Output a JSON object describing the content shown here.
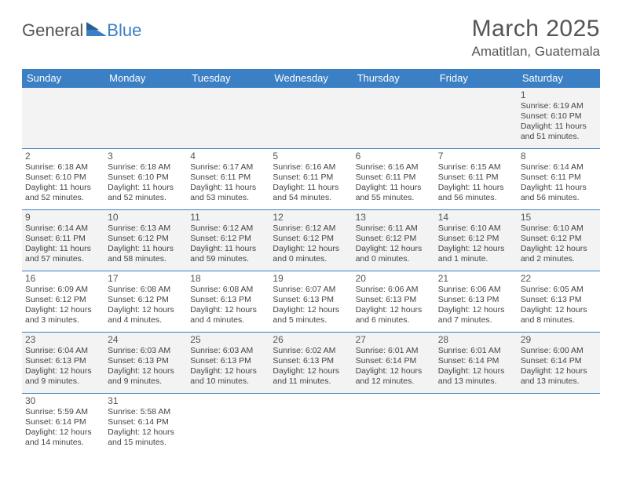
{
  "logo": {
    "text1": "General",
    "text2": "Blue"
  },
  "title": "March 2025",
  "location": "Amatitlan, Guatemala",
  "colors": {
    "header_bg": "#3b7fc4",
    "header_text": "#ffffff",
    "row_alt_bg": "#f3f3f3",
    "border": "#3b7fc4",
    "text": "#444444",
    "title_text": "#555555"
  },
  "weekdays": [
    "Sunday",
    "Monday",
    "Tuesday",
    "Wednesday",
    "Thursday",
    "Friday",
    "Saturday"
  ],
  "weeks": [
    [
      null,
      null,
      null,
      null,
      null,
      null,
      {
        "day": "1",
        "sunrise": "Sunrise: 6:19 AM",
        "sunset": "Sunset: 6:10 PM",
        "daylight": "Daylight: 11 hours and 51 minutes."
      }
    ],
    [
      {
        "day": "2",
        "sunrise": "Sunrise: 6:18 AM",
        "sunset": "Sunset: 6:10 PM",
        "daylight": "Daylight: 11 hours and 52 minutes."
      },
      {
        "day": "3",
        "sunrise": "Sunrise: 6:18 AM",
        "sunset": "Sunset: 6:10 PM",
        "daylight": "Daylight: 11 hours and 52 minutes."
      },
      {
        "day": "4",
        "sunrise": "Sunrise: 6:17 AM",
        "sunset": "Sunset: 6:11 PM",
        "daylight": "Daylight: 11 hours and 53 minutes."
      },
      {
        "day": "5",
        "sunrise": "Sunrise: 6:16 AM",
        "sunset": "Sunset: 6:11 PM",
        "daylight": "Daylight: 11 hours and 54 minutes."
      },
      {
        "day": "6",
        "sunrise": "Sunrise: 6:16 AM",
        "sunset": "Sunset: 6:11 PM",
        "daylight": "Daylight: 11 hours and 55 minutes."
      },
      {
        "day": "7",
        "sunrise": "Sunrise: 6:15 AM",
        "sunset": "Sunset: 6:11 PM",
        "daylight": "Daylight: 11 hours and 56 minutes."
      },
      {
        "day": "8",
        "sunrise": "Sunrise: 6:14 AM",
        "sunset": "Sunset: 6:11 PM",
        "daylight": "Daylight: 11 hours and 56 minutes."
      }
    ],
    [
      {
        "day": "9",
        "sunrise": "Sunrise: 6:14 AM",
        "sunset": "Sunset: 6:11 PM",
        "daylight": "Daylight: 11 hours and 57 minutes."
      },
      {
        "day": "10",
        "sunrise": "Sunrise: 6:13 AM",
        "sunset": "Sunset: 6:12 PM",
        "daylight": "Daylight: 11 hours and 58 minutes."
      },
      {
        "day": "11",
        "sunrise": "Sunrise: 6:12 AM",
        "sunset": "Sunset: 6:12 PM",
        "daylight": "Daylight: 11 hours and 59 minutes."
      },
      {
        "day": "12",
        "sunrise": "Sunrise: 6:12 AM",
        "sunset": "Sunset: 6:12 PM",
        "daylight": "Daylight: 12 hours and 0 minutes."
      },
      {
        "day": "13",
        "sunrise": "Sunrise: 6:11 AM",
        "sunset": "Sunset: 6:12 PM",
        "daylight": "Daylight: 12 hours and 0 minutes."
      },
      {
        "day": "14",
        "sunrise": "Sunrise: 6:10 AM",
        "sunset": "Sunset: 6:12 PM",
        "daylight": "Daylight: 12 hours and 1 minute."
      },
      {
        "day": "15",
        "sunrise": "Sunrise: 6:10 AM",
        "sunset": "Sunset: 6:12 PM",
        "daylight": "Daylight: 12 hours and 2 minutes."
      }
    ],
    [
      {
        "day": "16",
        "sunrise": "Sunrise: 6:09 AM",
        "sunset": "Sunset: 6:12 PM",
        "daylight": "Daylight: 12 hours and 3 minutes."
      },
      {
        "day": "17",
        "sunrise": "Sunrise: 6:08 AM",
        "sunset": "Sunset: 6:12 PM",
        "daylight": "Daylight: 12 hours and 4 minutes."
      },
      {
        "day": "18",
        "sunrise": "Sunrise: 6:08 AM",
        "sunset": "Sunset: 6:13 PM",
        "daylight": "Daylight: 12 hours and 4 minutes."
      },
      {
        "day": "19",
        "sunrise": "Sunrise: 6:07 AM",
        "sunset": "Sunset: 6:13 PM",
        "daylight": "Daylight: 12 hours and 5 minutes."
      },
      {
        "day": "20",
        "sunrise": "Sunrise: 6:06 AM",
        "sunset": "Sunset: 6:13 PM",
        "daylight": "Daylight: 12 hours and 6 minutes."
      },
      {
        "day": "21",
        "sunrise": "Sunrise: 6:06 AM",
        "sunset": "Sunset: 6:13 PM",
        "daylight": "Daylight: 12 hours and 7 minutes."
      },
      {
        "day": "22",
        "sunrise": "Sunrise: 6:05 AM",
        "sunset": "Sunset: 6:13 PM",
        "daylight": "Daylight: 12 hours and 8 minutes."
      }
    ],
    [
      {
        "day": "23",
        "sunrise": "Sunrise: 6:04 AM",
        "sunset": "Sunset: 6:13 PM",
        "daylight": "Daylight: 12 hours and 9 minutes."
      },
      {
        "day": "24",
        "sunrise": "Sunrise: 6:03 AM",
        "sunset": "Sunset: 6:13 PM",
        "daylight": "Daylight: 12 hours and 9 minutes."
      },
      {
        "day": "25",
        "sunrise": "Sunrise: 6:03 AM",
        "sunset": "Sunset: 6:13 PM",
        "daylight": "Daylight: 12 hours and 10 minutes."
      },
      {
        "day": "26",
        "sunrise": "Sunrise: 6:02 AM",
        "sunset": "Sunset: 6:13 PM",
        "daylight": "Daylight: 12 hours and 11 minutes."
      },
      {
        "day": "27",
        "sunrise": "Sunrise: 6:01 AM",
        "sunset": "Sunset: 6:14 PM",
        "daylight": "Daylight: 12 hours and 12 minutes."
      },
      {
        "day": "28",
        "sunrise": "Sunrise: 6:01 AM",
        "sunset": "Sunset: 6:14 PM",
        "daylight": "Daylight: 12 hours and 13 minutes."
      },
      {
        "day": "29",
        "sunrise": "Sunrise: 6:00 AM",
        "sunset": "Sunset: 6:14 PM",
        "daylight": "Daylight: 12 hours and 13 minutes."
      }
    ],
    [
      {
        "day": "30",
        "sunrise": "Sunrise: 5:59 AM",
        "sunset": "Sunset: 6:14 PM",
        "daylight": "Daylight: 12 hours and 14 minutes."
      },
      {
        "day": "31",
        "sunrise": "Sunrise: 5:58 AM",
        "sunset": "Sunset: 6:14 PM",
        "daylight": "Daylight: 12 hours and 15 minutes."
      },
      null,
      null,
      null,
      null,
      null
    ]
  ]
}
